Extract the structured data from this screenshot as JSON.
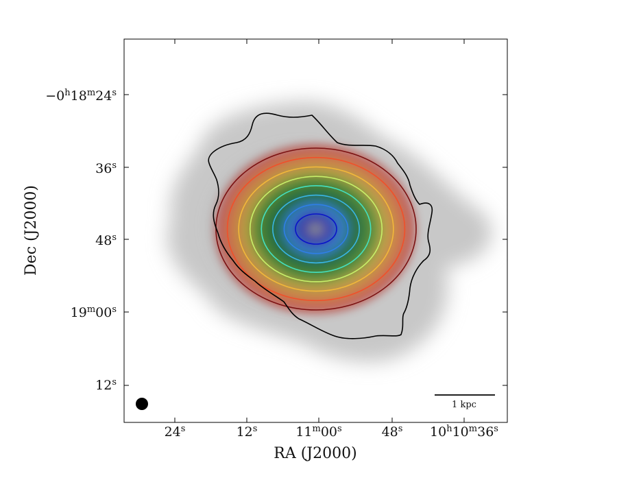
{
  "chart_data": {
    "type": "image",
    "xlabel": "RA (J2000)",
    "ylabel": "Dec (J2000)",
    "x_ticks": [
      {
        "value": "10:11:24",
        "label": "24",
        "sup": "s"
      },
      {
        "value": "10:11:12",
        "label": "12",
        "sup": "s"
      },
      {
        "value": "10:11:00",
        "label": "11",
        "sup": "m",
        "label2": "00",
        "sup2": "s"
      },
      {
        "value": "10:10:48",
        "label": "48",
        "sup": "s"
      },
      {
        "value": "10:10:36",
        "label": "10",
        "sup": "h",
        "label2": "10",
        "sup2": "m",
        "label3": "36",
        "sup3": "s"
      }
    ],
    "y_ticks": [
      {
        "value": "-0:18:24",
        "label": "−0",
        "sup": "h",
        "label2": "18",
        "sup2": "m",
        "label3": "24",
        "sup3": "s"
      },
      {
        "value": "-0:18:36",
        "label": "36",
        "sup": "s"
      },
      {
        "value": "-0:18:48",
        "label": "48",
        "sup": "s"
      },
      {
        "value": "-0:19:00",
        "label": "19",
        "sup": "m",
        "label2": "00",
        "sup2": "s"
      },
      {
        "value": "-0:19:12",
        "label": "12",
        "sup": "s"
      }
    ],
    "contours": {
      "model_levels": 8,
      "colors": [
        "#0a14c8",
        "#2f7fe8",
        "#39b6e6",
        "#44e0c0",
        "#c8f06a",
        "#f2b83a",
        "#f0502a",
        "#7a1010"
      ],
      "observed_contour_color": "#000000"
    },
    "scale_bar": {
      "label": "1 kpc"
    },
    "beam": {
      "shape": "circle",
      "color": "#000000"
    }
  }
}
